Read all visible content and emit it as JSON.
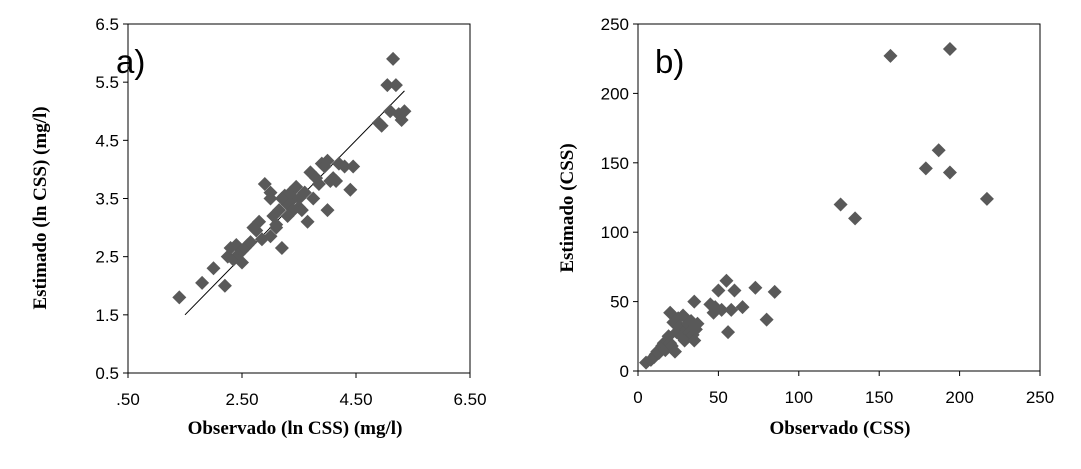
{
  "chart_data": [
    {
      "type": "scatter",
      "panel_label": "a)",
      "xlabel": "Observado (ln CSS) (mg/l)",
      "ylabel": "Estimado (ln CSS) (mg/l)",
      "xlim": [
        0.5,
        6.5
      ],
      "ylim": [
        0.5,
        6.5
      ],
      "xticks": [
        0.5,
        2.5,
        4.5,
        6.5
      ],
      "xtick_labels": [
        ".50",
        "2.50",
        "4.50",
        "6.50"
      ],
      "yticks": [
        0.5,
        1.5,
        2.5,
        3.5,
        4.5,
        5.5,
        6.5
      ],
      "ytick_labels": [
        "0.5",
        "1.5",
        "2.5",
        "3.5",
        "4.5",
        "5.5",
        "6.5"
      ],
      "grid": false,
      "marker_color": "#595959",
      "trendline": {
        "x": [
          1.5,
          5.35
        ],
        "y": [
          1.5,
          5.35
        ]
      },
      "x": [
        1.4,
        1.8,
        2.0,
        2.2,
        2.25,
        2.3,
        2.35,
        2.4,
        2.45,
        2.5,
        2.55,
        2.6,
        2.65,
        2.75,
        2.8,
        2.85,
        3.0,
        3.05,
        3.1,
        3.15,
        3.2,
        3.25,
        3.3,
        3.35,
        3.4,
        3.45,
        3.5,
        3.55,
        3.6,
        3.65,
        3.7,
        3.75,
        3.8,
        3.85,
        3.9,
        3.95,
        4.0,
        4.05,
        4.1,
        4.2,
        4.3,
        4.4,
        4.45,
        4.9,
        4.95,
        5.05,
        5.1,
        5.15,
        5.2,
        5.25,
        5.3,
        5.35,
        2.9,
        3.0,
        3.2,
        3.4,
        3.6,
        4.0,
        4.15,
        3.1,
        2.7,
        2.5,
        3.0,
        3.3,
        3.5
      ],
      "y": [
        1.8,
        2.05,
        2.3,
        2.0,
        2.5,
        2.65,
        2.45,
        2.7,
        2.55,
        2.6,
        2.65,
        2.7,
        2.75,
        2.95,
        3.1,
        2.8,
        2.85,
        3.2,
        3.0,
        3.3,
        2.65,
        3.55,
        3.4,
        3.6,
        3.5,
        3.7,
        3.35,
        3.3,
        3.6,
        3.1,
        3.95,
        3.5,
        3.85,
        3.75,
        4.1,
        4.05,
        3.3,
        3.8,
        3.85,
        4.1,
        4.05,
        3.65,
        4.05,
        4.8,
        4.75,
        5.45,
        5.0,
        5.9,
        5.45,
        4.95,
        4.85,
        5.0,
        3.75,
        3.6,
        3.5,
        3.3,
        3.6,
        4.15,
        3.8,
        3.05,
        3.0,
        2.4,
        3.5,
        3.2,
        3.5
      ]
    },
    {
      "type": "scatter",
      "panel_label": "b)",
      "xlabel": "Observado (CSS)",
      "ylabel": "Estimado (CSS)",
      "xlim": [
        0,
        250
      ],
      "ylim": [
        0,
        250
      ],
      "xticks": [
        0,
        50,
        100,
        150,
        200,
        250
      ],
      "xtick_labels": [
        "0",
        "50",
        "100",
        "150",
        "200",
        "250"
      ],
      "yticks": [
        0,
        50,
        100,
        150,
        200,
        250
      ],
      "ytick_labels": [
        "0",
        "50",
        "100",
        "150",
        "200",
        "250"
      ],
      "grid": false,
      "marker_color": "#595959",
      "x": [
        5,
        8,
        10,
        11,
        12,
        13,
        14,
        15,
        16,
        17,
        18,
        19,
        20,
        20,
        21,
        22,
        23,
        24,
        25,
        26,
        27,
        28,
        29,
        30,
        31,
        32,
        33,
        34,
        35,
        35,
        36,
        37,
        45,
        47,
        48,
        50,
        52,
        55,
        56,
        58,
        60,
        65,
        73,
        80,
        85,
        126,
        135,
        157,
        179,
        187,
        194,
        194,
        217
      ],
      "y": [
        6,
        8,
        10,
        12,
        14,
        13,
        16,
        18,
        20,
        15,
        22,
        25,
        42,
        20,
        18,
        35,
        14,
        28,
        38,
        32,
        25,
        40,
        22,
        30,
        34,
        28,
        36,
        26,
        22,
        50,
        30,
        34,
        48,
        42,
        46,
        58,
        44,
        65,
        28,
        44,
        58,
        46,
        60,
        37,
        57,
        120,
        110,
        227,
        146,
        159,
        232,
        143,
        124
      ]
    }
  ]
}
